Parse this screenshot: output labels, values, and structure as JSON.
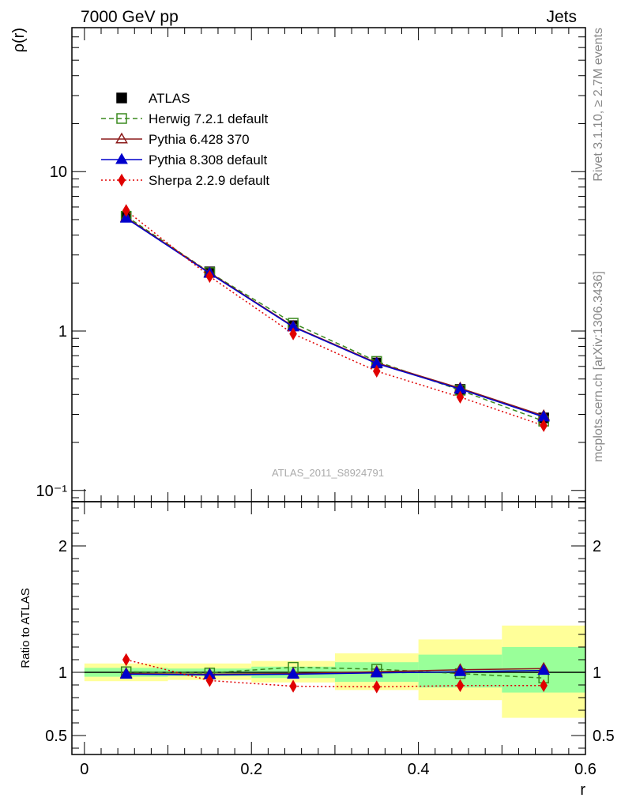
{
  "header": {
    "left": "7000 GeV pp",
    "right": "Jets"
  },
  "side_labels": {
    "rivet": "Rivet 3.1.10, ≥ 2.7M events",
    "mcplots": "mcplots.cern.ch [arXiv:1306.3436]"
  },
  "watermark": "ATLAS_2011_S8924791",
  "chart_data": [
    {
      "type": "line",
      "panel": "main",
      "ylabel": "ρ(r)",
      "xlabel": "",
      "yscale": "log",
      "xlim": [
        -0.015,
        0.6
      ],
      "ylim": [
        0.085,
        80
      ],
      "y_ticks": [
        {
          "value": 10,
          "label": "10"
        },
        {
          "value": 1,
          "label": "1"
        },
        {
          "value": 0.1,
          "label": "10⁻¹"
        }
      ],
      "x": [
        0.05,
        0.15,
        0.25,
        0.35,
        0.45,
        0.55
      ],
      "legend_position": "top-left",
      "series": [
        {
          "name": "ATLAS",
          "color": "#000000",
          "marker": "filled-square",
          "line": "none",
          "values": [
            5.2,
            2.35,
            1.08,
            0.63,
            0.43,
            0.285
          ]
        },
        {
          "name": "Herwig 7.2.1 default",
          "color": "#3a8a1e",
          "marker": "open-square",
          "line": "dashed",
          "values": [
            5.25,
            2.33,
            1.12,
            0.645,
            0.425,
            0.272
          ]
        },
        {
          "name": "Pythia 6.428 370",
          "color": "#8b1a1a",
          "marker": "open-triangle",
          "line": "solid",
          "values": [
            5.15,
            2.32,
            1.07,
            0.632,
            0.438,
            0.294
          ]
        },
        {
          "name": "Pythia 8.308 default",
          "color": "#0000cc",
          "marker": "filled-triangle",
          "line": "solid",
          "values": [
            5.1,
            2.3,
            1.06,
            0.625,
            0.432,
            0.289
          ]
        },
        {
          "name": "Sherpa 2.2.9 default",
          "color": "#e00000",
          "marker": "filled-diamond",
          "line": "dotted",
          "values": [
            5.7,
            2.2,
            0.96,
            0.56,
            0.385,
            0.255
          ]
        }
      ]
    },
    {
      "type": "line",
      "panel": "ratio",
      "ylabel": "Ratio to ATLAS",
      "xlabel": "r",
      "xlim": [
        -0.015,
        0.6
      ],
      "ylim": [
        0.35,
        2.35
      ],
      "x_ticks": [
        {
          "value": 0,
          "label": "0"
        },
        {
          "value": 0.2,
          "label": "0.2"
        },
        {
          "value": 0.4,
          "label": "0.4"
        },
        {
          "value": 0.6,
          "label": "0.6"
        }
      ],
      "y_ticks": [
        {
          "value": 2,
          "label": "2"
        },
        {
          "value": 1,
          "label": "1"
        },
        {
          "value": 0.5,
          "label": "0.5"
        }
      ],
      "uncertainty_bands": {
        "bin_edges": [
          0,
          0.1,
          0.2,
          0.3,
          0.4,
          0.5,
          0.6
        ],
        "outer_color": "#ffff99",
        "inner_color": "#99ff99",
        "outer": [
          [
            0.93,
            1.07
          ],
          [
            0.94,
            1.07
          ],
          [
            0.92,
            1.09
          ],
          [
            0.86,
            1.15
          ],
          [
            0.78,
            1.26
          ],
          [
            0.64,
            1.37
          ]
        ],
        "inner": [
          [
            0.965,
            1.035
          ],
          [
            0.97,
            1.03
          ],
          [
            0.955,
            1.045
          ],
          [
            0.925,
            1.08
          ],
          [
            0.88,
            1.14
          ],
          [
            0.84,
            1.2
          ]
        ]
      },
      "x": [
        0.05,
        0.15,
        0.25,
        0.35,
        0.45,
        0.55
      ],
      "series": [
        {
          "name": "Herwig 7.2.1 default",
          "color": "#3a8a1e",
          "marker": "open-square",
          "line": "dashed",
          "values": [
            1.005,
            0.995,
            1.04,
            1.025,
            0.99,
            0.955
          ]
        },
        {
          "name": "Pythia 6.428 370",
          "color": "#8b1a1a",
          "marker": "open-triangle",
          "line": "solid",
          "values": [
            0.99,
            0.985,
            0.99,
            1.005,
            1.02,
            1.03
          ]
        },
        {
          "name": "Pythia 8.308 default",
          "color": "#0000cc",
          "marker": "filled-triangle",
          "line": "solid",
          "values": [
            0.985,
            0.98,
            0.985,
            0.995,
            1.005,
            1.015
          ]
        },
        {
          "name": "Sherpa 2.2.9 default",
          "color": "#e00000",
          "marker": "filled-diamond",
          "line": "dotted",
          "values": [
            1.1,
            0.935,
            0.89,
            0.885,
            0.895,
            0.895
          ]
        }
      ]
    }
  ]
}
